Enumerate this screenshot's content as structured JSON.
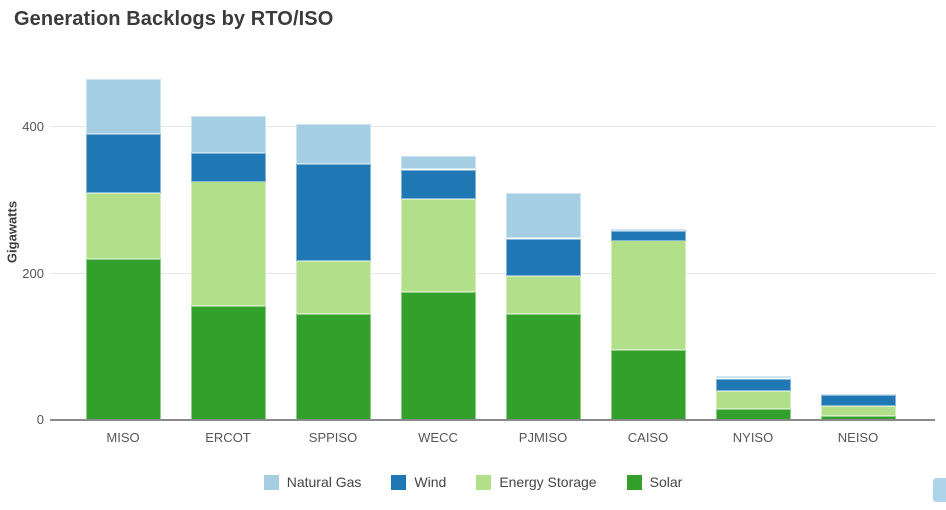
{
  "chart_data": {
    "type": "bar",
    "stacked": true,
    "title": "Generation Backlogs by RTO/ISO",
    "ylabel": "Gigawatts",
    "xlabel": "",
    "units": "GW",
    "categories": [
      "MISO",
      "ERCOT",
      "SPPISO",
      "WECC",
      "PJMISO",
      "CAISO",
      "NYISO",
      "NEISO"
    ],
    "series": [
      {
        "name": "Solar",
        "color": "#33a02c",
        "values": [
          220,
          155,
          145,
          175,
          145,
          95,
          15,
          6
        ]
      },
      {
        "name": "Energy Storage",
        "color": "#b2df8a",
        "values": [
          90,
          170,
          72,
          127,
          52,
          150,
          25,
          13
        ]
      },
      {
        "name": "Wind",
        "color": "#1f78b4",
        "values": [
          80,
          40,
          133,
          40,
          51,
          13,
          17,
          15
        ]
      },
      {
        "name": "Natural Gas",
        "color": "#a6cee3",
        "values": [
          75,
          50,
          55,
          18,
          62,
          3,
          3,
          2
        ]
      }
    ],
    "totals": [
      465,
      415,
      405,
      360,
      310,
      261,
      60,
      36
    ],
    "legend": [
      "Natural Gas",
      "Wind",
      "Energy Storage",
      "Solar"
    ],
    "legend_position": "bottom",
    "yticks": [
      0,
      200,
      400
    ],
    "ylim": [
      0,
      478
    ],
    "grid": "horizontal"
  },
  "decorations": {
    "edge_chip_color": "#aed4ea"
  }
}
